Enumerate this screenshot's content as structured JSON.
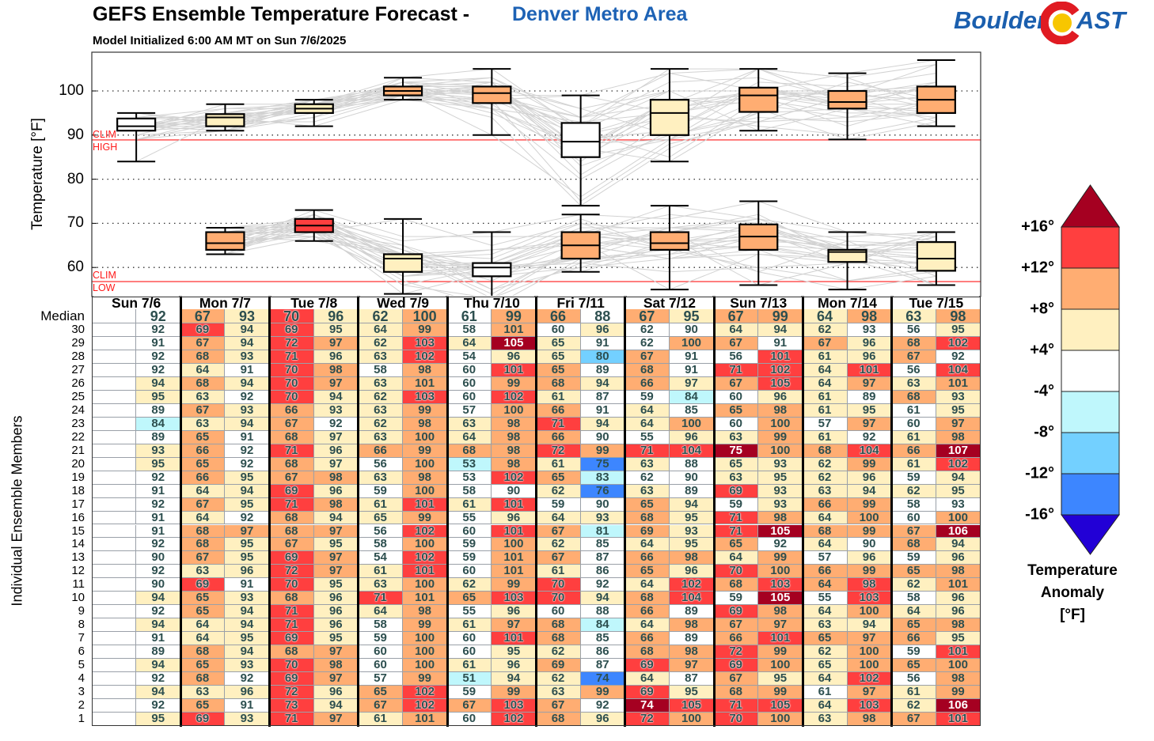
{
  "header": {
    "title": "GEFS Ensemble Temperature Forecast -",
    "location": "Denver Metro Area",
    "subtitle": "Model Initialized 6:00 AM MT on Sun 7/6/2025"
  },
  "logo": {
    "text_left": "Boulder",
    "text_right": "AST",
    "brand_blue": "#1b5fae",
    "ring_red": "#e01b22",
    "center_yellow": "#f7c600"
  },
  "table": {
    "median_label": "Median",
    "members_label": "Individual Ensemble Members"
  },
  "palette": {
    "d": "#a50021",
    "r": "#ff3f3f",
    "o": "#ffad72",
    "y": "#fff0c0",
    "w": "#ffffff",
    "c": "#bff7fc",
    "b": "#73d0ff",
    "B": "#3d86ff",
    "p": "#2200d6"
  },
  "legend": {
    "title_lines": [
      "Temperature",
      "Anomaly",
      "[°F]"
    ],
    "labels": [
      "+16°",
      "+12°",
      "+8°",
      "+4°",
      "-4°",
      "-8°",
      "-12°",
      "-16°"
    ],
    "bins": [
      "d",
      "r",
      "o",
      "y",
      "w",
      "c",
      "b",
      "B",
      "p"
    ]
  },
  "chart_data": {
    "type": "box",
    "title": "GEFS Ensemble Temperature Forecast - Denver Metro Area",
    "ylabel": "Temperature [°F]",
    "ylim": [
      53.4,
      108.8
    ],
    "yticks": [
      60,
      70,
      80,
      90,
      100
    ],
    "grid": true,
    "clim_high": 88.9,
    "clim_low": 56.8,
    "clim_high_label": [
      "CLIM",
      "HIGH"
    ],
    "clim_low_label": [
      "CLIM",
      "LOW"
    ],
    "days": [
      "Sun 7/6",
      "Mon 7/7",
      "Tue 7/8",
      "Wed 7/9",
      "Thu 7/10",
      "Fri 7/11",
      "Sat 7/12",
      "Sun 7/13",
      "Mon 7/14",
      "Tue 7/15"
    ],
    "median": {
      "values": [
        null,
        92,
        67,
        93,
        70,
        96,
        62,
        100,
        61,
        99,
        66,
        88,
        67,
        95,
        67,
        99,
        64,
        98,
        63,
        98
      ],
      "colors": "-woyryyowoowoyooyoyo"
    },
    "members": [
      {
        "id": 30,
        "values": [
          null,
          92,
          69,
          94,
          69,
          95,
          64,
          99,
          58,
          101,
          60,
          96,
          62,
          90,
          64,
          94,
          62,
          93,
          56,
          95
        ],
        "colors": "-wryryyowowywwyyywwy"
      },
      {
        "id": 29,
        "values": [
          null,
          91,
          67,
          94,
          72,
          97,
          62,
          103,
          64,
          105,
          65,
          91,
          62,
          100,
          67,
          91,
          67,
          96,
          68,
          102
        ],
        "colors": "-woyroyrydywwoowoyor"
      },
      {
        "id": 28,
        "values": [
          null,
          92,
          68,
          93,
          71,
          96,
          63,
          102,
          54,
          96,
          65,
          80,
          67,
          91,
          56,
          101,
          61,
          96,
          67,
          92
        ],
        "colors": "-woyryyrwyybowwryyow"
      },
      {
        "id": 27,
        "values": [
          null,
          92,
          64,
          91,
          70,
          98,
          58,
          98,
          60,
          101,
          65,
          89,
          68,
          91,
          71,
          102,
          64,
          101,
          56,
          104
        ],
        "colors": "-wywrowowrowowrryrwr"
      },
      {
        "id": 26,
        "values": [
          null,
          94,
          68,
          94,
          70,
          97,
          63,
          101,
          60,
          99,
          68,
          94,
          66,
          97,
          67,
          105,
          64,
          97,
          63,
          101
        ],
        "colors": "-yoyroyowooyoyoryoyo"
      },
      {
        "id": 25,
        "values": [
          null,
          95,
          63,
          92,
          70,
          94,
          62,
          103,
          60,
          102,
          61,
          87,
          59,
          84,
          60,
          96,
          61,
          89,
          68,
          93
        ],
        "colors": "-yywryyrwrywwcwyywoy"
      },
      {
        "id": 24,
        "values": [
          null,
          89,
          67,
          93,
          66,
          93,
          63,
          99,
          57,
          100,
          66,
          91,
          64,
          85,
          65,
          98,
          61,
          95,
          61,
          95
        ],
        "colors": "-woyoyyowoowywooyywy"
      },
      {
        "id": 23,
        "values": [
          null,
          84,
          63,
          94,
          67,
          92,
          62,
          98,
          63,
          98,
          71,
          94,
          64,
          100,
          60,
          100,
          57,
          97,
          60,
          97
        ],
        "colors": "-cyyowyoyoryyowowowo"
      },
      {
        "id": 22,
        "values": [
          null,
          89,
          65,
          91,
          68,
          97,
          63,
          100,
          64,
          98,
          66,
          90,
          55,
          96,
          63,
          99,
          61,
          92,
          61,
          98
        ],
        "colors": "-wowoyyoyoowwyyoywyo"
      },
      {
        "id": 21,
        "values": [
          null,
          93,
          66,
          92,
          71,
          96,
          66,
          99,
          68,
          98,
          72,
          99,
          71,
          104,
          75,
          100,
          68,
          104,
          66,
          107
        ],
        "colors": "-yowryoooororrdoorod"
      },
      {
        "id": 20,
        "values": [
          null,
          95,
          65,
          92,
          68,
          97,
          56,
          100,
          53,
          98,
          61,
          75,
          63,
          88,
          65,
          93,
          62,
          99,
          61,
          102
        ],
        "colors": "-yowoywocoyBywyyyoyr"
      },
      {
        "id": 19,
        "values": [
          null,
          92,
          66,
          95,
          67,
          98,
          63,
          98,
          53,
          102,
          65,
          83,
          62,
          90,
          63,
          95,
          62,
          96,
          59,
          94
        ],
        "colors": "-woyooyowrocwwyyyywy"
      },
      {
        "id": 18,
        "values": [
          null,
          91,
          64,
          94,
          69,
          96,
          59,
          100,
          58,
          90,
          62,
          76,
          63,
          89,
          69,
          93,
          63,
          94,
          62,
          95
        ],
        "colors": "-wyyrywowwyBywryyyyy"
      },
      {
        "id": 17,
        "values": [
          null,
          92,
          67,
          95,
          71,
          98,
          61,
          101,
          61,
          101,
          59,
          90,
          65,
          94,
          59,
          93,
          66,
          99,
          58,
          93
        ],
        "colors": "-woyroyryrwwoywyooww"
      },
      {
        "id": 16,
        "values": [
          null,
          91,
          64,
          92,
          68,
          94,
          65,
          99,
          55,
          96,
          64,
          93,
          68,
          95,
          71,
          98,
          64,
          100,
          60,
          100
        ],
        "colors": "-wywoyyowyyyoyroyowo"
      },
      {
        "id": 15,
        "values": [
          null,
          91,
          68,
          97,
          68,
          97,
          56,
          102,
          60,
          101,
          67,
          81,
          69,
          93,
          71,
          105,
          68,
          99,
          67,
          106
        ],
        "colors": "-woooowrwrocoyrdoood"
      },
      {
        "id": 14,
        "values": [
          null,
          92,
          68,
          95,
          67,
          95,
          58,
          100,
          59,
          100,
          62,
          85,
          64,
          95,
          65,
          92,
          64,
          90,
          68,
          94
        ],
        "colors": "-woyoywowoywyyowywoy"
      },
      {
        "id": 13,
        "values": [
          null,
          90,
          67,
          95,
          69,
          97,
          54,
          102,
          59,
          101,
          67,
          87,
          66,
          98,
          64,
          99,
          57,
          96,
          59,
          96
        ],
        "colors": "-woyrowrwoowooyowywy"
      },
      {
        "id": 12,
        "values": [
          null,
          92,
          63,
          96,
          72,
          97,
          61,
          101,
          60,
          101,
          61,
          86,
          65,
          96,
          70,
          100,
          66,
          99,
          65,
          98
        ],
        "colors": "-wyyroyrwoywoyrooooo"
      },
      {
        "id": 11,
        "values": [
          null,
          90,
          69,
          91,
          70,
          95,
          63,
          100,
          62,
          99,
          70,
          92,
          64,
          102,
          68,
          103,
          64,
          98,
          62,
          101
        ],
        "colors": "-wrwryyoyorwyrororyo"
      },
      {
        "id": 10,
        "values": [
          null,
          94,
          65,
          93,
          68,
          96,
          71,
          101,
          65,
          103,
          70,
          94,
          68,
          104,
          59,
          105,
          55,
          103,
          58,
          96
        ],
        "colors": "-yoyoyroorryorwdwrwy"
      },
      {
        "id": 9,
        "values": [
          null,
          92,
          65,
          94,
          71,
          96,
          64,
          98,
          55,
          96,
          60,
          88,
          66,
          89,
          69,
          98,
          64,
          100,
          64,
          96
        ],
        "colors": "-woyryyowywwowroyoyy"
      },
      {
        "id": 8,
        "values": [
          null,
          94,
          64,
          94,
          71,
          96,
          58,
          99,
          61,
          97,
          68,
          84,
          64,
          98,
          67,
          97,
          63,
          94,
          65,
          98
        ],
        "colors": "-yyyrywoyoocyoooyyoo"
      },
      {
        "id": 7,
        "values": [
          null,
          91,
          64,
          95,
          69,
          95,
          59,
          100,
          60,
          101,
          68,
          85,
          66,
          89,
          66,
          101,
          65,
          97,
          66,
          95
        ],
        "colors": "-wyyrywowrowoworoooy"
      },
      {
        "id": 6,
        "values": [
          null,
          89,
          68,
          94,
          68,
          97,
          60,
          100,
          60,
          95,
          62,
          86,
          68,
          98,
          72,
          99,
          62,
          100,
          59,
          101
        ],
        "colors": "-woyoowowyywooroyowr"
      },
      {
        "id": 5,
        "values": [
          null,
          94,
          65,
          93,
          70,
          98,
          60,
          100,
          61,
          96,
          69,
          87,
          69,
          97,
          69,
          100,
          65,
          100,
          65,
          100
        ],
        "colors": "-yoyrowoyyowroroyooo"
      },
      {
        "id": 4,
        "values": [
          null,
          92,
          68,
          92,
          69,
          97,
          57,
          99,
          51,
          94,
          62,
          74,
          64,
          87,
          67,
          95,
          64,
          102,
          56,
          98
        ],
        "colors": "-wowrowocyyBywoyyrwo"
      },
      {
        "id": 3,
        "values": [
          null,
          94,
          63,
          96,
          72,
          96,
          65,
          102,
          59,
          99,
          63,
          99,
          69,
          95,
          68,
          99,
          61,
          97,
          61,
          99
        ],
        "colors": "-yyyryorwoyoryoowoyo"
      },
      {
        "id": 2,
        "values": [
          null,
          92,
          65,
          91,
          73,
          94,
          67,
          102,
          67,
          103,
          67,
          92,
          74,
          105,
          71,
          105,
          64,
          103,
          62,
          106
        ],
        "colors": "-wowryororowdrrryryd"
      },
      {
        "id": 1,
        "values": [
          null,
          95,
          69,
          93,
          71,
          97,
          61,
          101,
          60,
          102,
          68,
          96,
          72,
          100,
          70,
          100,
          63,
          98,
          67,
          101
        ],
        "colors": "-yryroyowroyroroyoor"
      }
    ]
  }
}
